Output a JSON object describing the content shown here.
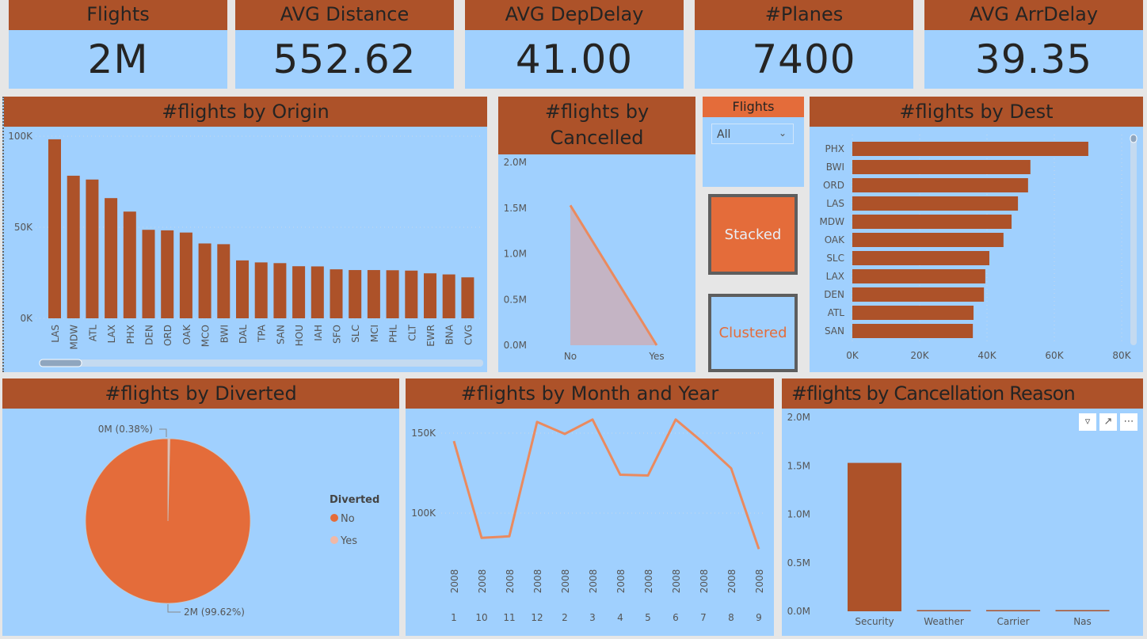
{
  "kpis": [
    {
      "title": "Flights",
      "value": "2M"
    },
    {
      "title": "AVG Distance",
      "value": "552.62"
    },
    {
      "title": "AVG DepDelay",
      "value": "41.00"
    },
    {
      "title": "#Planes",
      "value": "7400"
    },
    {
      "title": "AVG ArrDelay",
      "value": "39.35"
    }
  ],
  "slicer": {
    "title": "Flights",
    "selected": "All"
  },
  "buttons": {
    "stacked": "Stacked",
    "clustered": "Clustered"
  },
  "colors": {
    "header": "#ad5229",
    "panel": "#a0d0fe",
    "bar": "#ad5229",
    "line": "#ea8a5f",
    "pie_no": "#e46c3a",
    "pie_yes": "#f0b8a6",
    "button_active": "#e46c3a"
  },
  "visual_icons": [
    "filter-icon",
    "focus-mode-icon",
    "more-options-icon"
  ],
  "chart_data": [
    {
      "id": "origin",
      "type": "bar",
      "title": "#flights by Origin",
      "categories": [
        "LAS",
        "MDW",
        "ATL",
        "LAX",
        "PHX",
        "DEN",
        "ORD",
        "OAK",
        "MCO",
        "BWI",
        "DAL",
        "TPA",
        "SAN",
        "HOU",
        "IAH",
        "SFO",
        "SLC",
        "MCI",
        "PHL",
        "CLT",
        "EWR",
        "BNA",
        "CVG"
      ],
      "values": [
        98300,
        78300,
        76200,
        66000,
        58600,
        48600,
        48300,
        47100,
        41100,
        40700,
        31800,
        30700,
        30300,
        28600,
        28500,
        26900,
        26500,
        26500,
        26400,
        26200,
        24700,
        24100,
        22500
      ],
      "ylim": [
        0,
        100000
      ],
      "yticks": [
        "0K",
        "50K",
        "100K"
      ],
      "grid": true
    },
    {
      "id": "cancelled",
      "type": "area",
      "title": "#flights by Cancelled",
      "categories": [
        "No",
        "Yes"
      ],
      "values": [
        1530000,
        0
      ],
      "ylim": [
        0,
        2000000
      ],
      "yticks": [
        "0.0M",
        "0.5M",
        "1.0M",
        "1.5M",
        "2.0M"
      ]
    },
    {
      "id": "dest",
      "type": "bar",
      "orientation": "horizontal",
      "title": "#flights by Dest",
      "categories": [
        "PHX",
        "BWI",
        "ORD",
        "LAS",
        "MDW",
        "OAK",
        "SLC",
        "LAX",
        "DEN",
        "ATL",
        "SAN"
      ],
      "values": [
        70100,
        52900,
        52200,
        49200,
        47300,
        44900,
        40700,
        39500,
        39100,
        36000,
        35800
      ],
      "xlim": [
        0,
        80000
      ],
      "xticks": [
        "0K",
        "20K",
        "40K",
        "60K",
        "80K"
      ],
      "grid": true
    },
    {
      "id": "diverted",
      "type": "pie",
      "title": "#flights by Diverted",
      "legend_title": "Diverted",
      "legend_position": "right",
      "slices": [
        {
          "name": "No",
          "percent": 99.62,
          "label": "2M (99.62%)"
        },
        {
          "name": "Yes",
          "percent": 0.38,
          "label": "0M (0.38%)"
        }
      ]
    },
    {
      "id": "month",
      "type": "line",
      "title": "#flights by Month and Year",
      "x": [
        {
          "year": "2008",
          "month": "1"
        },
        {
          "year": "2008",
          "month": "10"
        },
        {
          "year": "2008",
          "month": "11"
        },
        {
          "year": "2008",
          "month": "12"
        },
        {
          "year": "2008",
          "month": "2"
        },
        {
          "year": "2008",
          "month": "3"
        },
        {
          "year": "2008",
          "month": "4"
        },
        {
          "year": "2008",
          "month": "5"
        },
        {
          "year": "2008",
          "month": "6"
        },
        {
          "year": "2008",
          "month": "7"
        },
        {
          "year": "2008",
          "month": "8"
        },
        {
          "year": "2008",
          "month": "9"
        }
      ],
      "values": [
        145000,
        84500,
        85500,
        157000,
        149500,
        158500,
        124000,
        123500,
        158500,
        144000,
        128000,
        77500
      ],
      "yticks": [
        "100K",
        "150K"
      ],
      "grid": true
    },
    {
      "id": "reason",
      "type": "bar",
      "title": "#flights by Cancellation Reason",
      "categories": [
        "Security",
        "Weather",
        "Carrier",
        "Nas"
      ],
      "values": [
        1530000,
        3000,
        3000,
        2000
      ],
      "ylim": [
        0,
        2000000
      ],
      "yticks": [
        "0.0M",
        "0.5M",
        "1.0M",
        "1.5M",
        "2.0M"
      ]
    }
  ]
}
